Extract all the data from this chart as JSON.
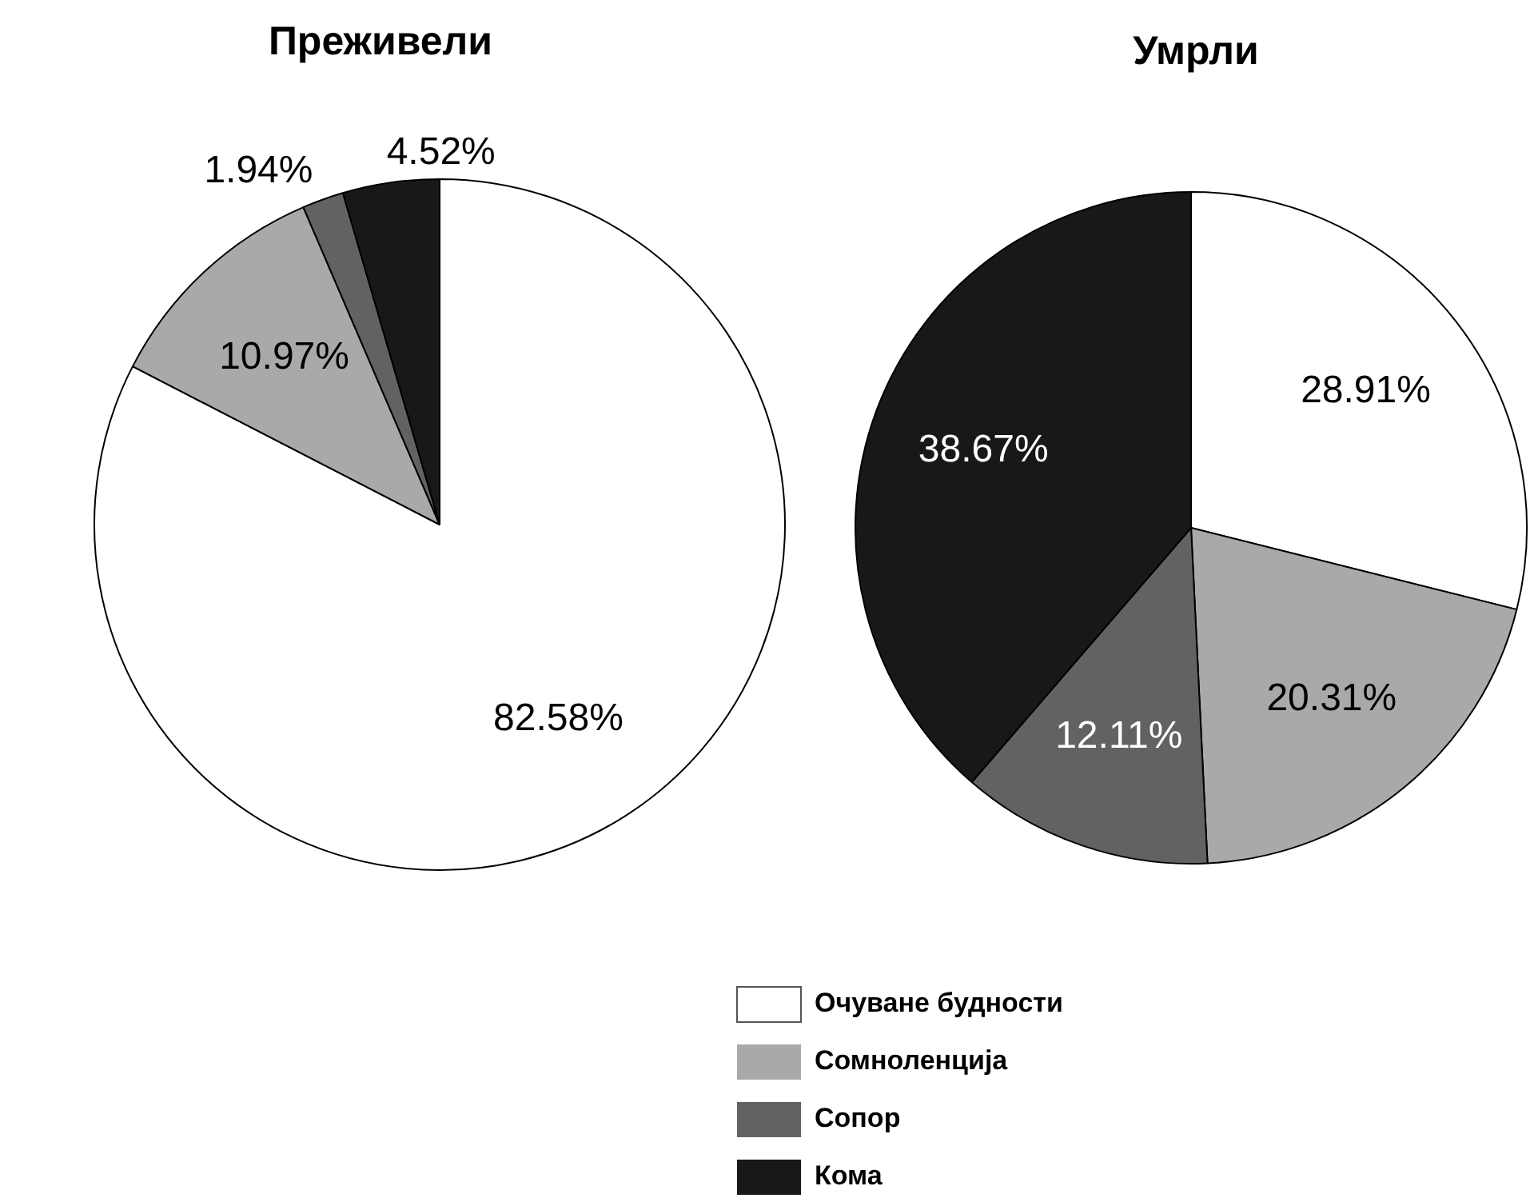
{
  "chart_data": {
    "type": "pie",
    "categories": [
      "Очуване будности",
      "Сомноленција",
      "Сопор",
      "Кома"
    ],
    "colors": [
      "#ffffff",
      "#a9a9a9",
      "#626262",
      "#181818"
    ],
    "series": [
      {
        "name": "Преживели",
        "values": [
          82.58,
          10.97,
          1.94,
          4.52
        ],
        "value_labels": [
          "82.58%",
          "10.97%",
          "1.94%",
          "4.52%"
        ]
      },
      {
        "name": "Умрли",
        "values": [
          28.91,
          20.31,
          12.11,
          38.67
        ],
        "value_labels": [
          "28.91%",
          "20.31%",
          "12.11%",
          "38.67%"
        ]
      }
    ],
    "legend": "bottom"
  }
}
